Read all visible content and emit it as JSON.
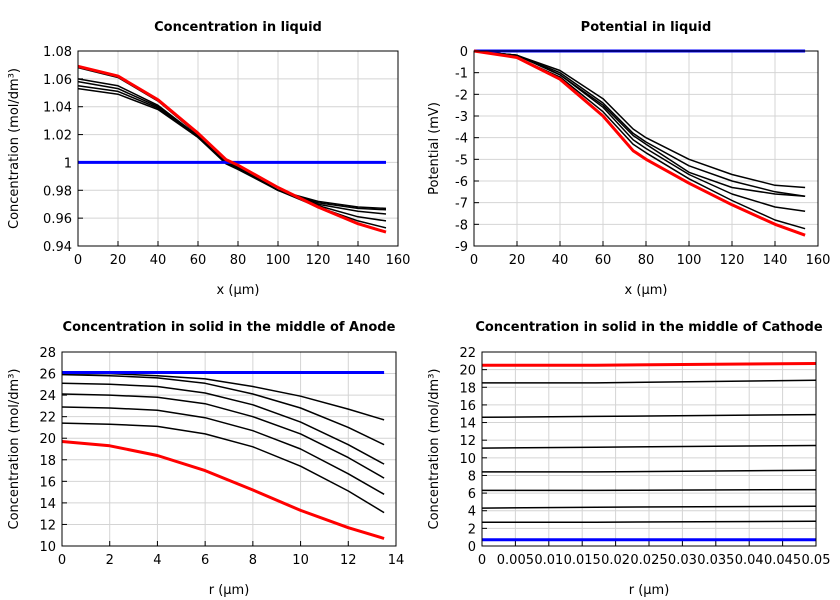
{
  "chart_data": [
    {
      "type": "line",
      "title": "Concentration in liquid",
      "xlabel": "x (µm)",
      "ylabel": "Concentration (mol/dm³)",
      "xlim": [
        0,
        160
      ],
      "ylim": [
        0.94,
        1.08
      ],
      "grid": true,
      "xticks": [
        "0",
        "20",
        "40",
        "60",
        "80",
        "100",
        "120",
        "140",
        "160"
      ],
      "yticks": [
        "0.94",
        "0.96",
        "0.98",
        "1",
        "1.02",
        "1.04",
        "1.06",
        "1.08"
      ],
      "x": [
        0,
        20,
        40,
        60,
        74,
        80,
        100,
        120,
        140,
        154
      ],
      "series": [
        {
          "color": "#000000",
          "values": [
            1.068,
            1.061,
            1.044,
            1.02,
            1.001,
            0.997,
            0.98,
            0.972,
            0.968,
            0.967
          ]
        },
        {
          "color": "#000000",
          "values": [
            1.06,
            1.055,
            1.041,
            1.019,
            1.0,
            0.996,
            0.98,
            0.971,
            0.967,
            0.966
          ]
        },
        {
          "color": "#000000",
          "values": [
            1.058,
            1.053,
            1.04,
            1.019,
            1.0,
            0.996,
            0.98,
            0.97,
            0.965,
            0.963
          ]
        },
        {
          "color": "#000000",
          "values": [
            1.055,
            1.051,
            1.039,
            1.018,
            1.0,
            0.996,
            0.98,
            0.969,
            0.961,
            0.958
          ]
        },
        {
          "color": "#000000",
          "values": [
            1.053,
            1.049,
            1.038,
            1.018,
            0.999,
            0.995,
            0.98,
            0.968,
            0.958,
            0.953
          ]
        },
        {
          "color": "#0000ff",
          "values": [
            1,
            1,
            1,
            1,
            1,
            1,
            1,
            1,
            1,
            1
          ]
        },
        {
          "color": "#ff0000",
          "values": [
            1.069,
            1.062,
            1.045,
            1.021,
            1.002,
            0.998,
            0.982,
            0.968,
            0.956,
            0.95
          ]
        }
      ]
    },
    {
      "type": "line",
      "title": "Potential in liquid",
      "xlabel": "x (µm)",
      "ylabel": "Potential (mV)",
      "xlim": [
        0,
        160
      ],
      "ylim": [
        -9,
        0
      ],
      "grid": true,
      "xticks": [
        "0",
        "20",
        "40",
        "60",
        "80",
        "100",
        "120",
        "140",
        "160"
      ],
      "yticks": [
        "-9",
        "-8",
        "-7",
        "-6",
        "-5",
        "-4",
        "-3",
        "-2",
        "-1",
        "0"
      ],
      "x": [
        0,
        20,
        40,
        60,
        74,
        80,
        100,
        120,
        140,
        154
      ],
      "series": [
        {
          "color": "#000000",
          "values": [
            0,
            -0.2,
            -0.9,
            -2.2,
            -3.6,
            -4.0,
            -5.0,
            -5.7,
            -6.2,
            -6.3
          ]
        },
        {
          "color": "#000000",
          "values": [
            0,
            -0.2,
            -1.0,
            -2.4,
            -3.8,
            -4.2,
            -5.3,
            -6.0,
            -6.5,
            -6.7
          ]
        },
        {
          "color": "#000000",
          "values": [
            0,
            -0.2,
            -1.1,
            -2.5,
            -3.9,
            -4.3,
            -5.6,
            -6.3,
            -6.6,
            -6.7
          ]
        },
        {
          "color": "#000000",
          "values": [
            0,
            -0.2,
            -1.1,
            -2.6,
            -4.1,
            -4.5,
            -5.7,
            -6.6,
            -7.2,
            -7.4
          ]
        },
        {
          "color": "#000000",
          "values": [
            0,
            -0.3,
            -1.2,
            -2.8,
            -4.3,
            -4.7,
            -5.9,
            -6.9,
            -7.8,
            -8.2
          ]
        },
        {
          "color": "#0000ff",
          "values": [
            0,
            0,
            0,
            0,
            0,
            0,
            0,
            0,
            0,
            0
          ]
        },
        {
          "color": "#ff0000",
          "values": [
            0,
            -0.3,
            -1.3,
            -3.0,
            -4.6,
            -5.0,
            -6.1,
            -7.1,
            -8.0,
            -8.5
          ]
        }
      ]
    },
    {
      "type": "line",
      "title": "Concentration in solid in the middle of Anode",
      "xlabel": "r (µm)",
      "ylabel": "Concentration (mol/dm³)",
      "xlim": [
        0,
        14
      ],
      "ylim": [
        10,
        28
      ],
      "grid": true,
      "xticks": [
        "0",
        "2",
        "4",
        "6",
        "8",
        "10",
        "12",
        "14"
      ],
      "yticks": [
        "10",
        "12",
        "14",
        "16",
        "18",
        "20",
        "22",
        "24",
        "26",
        "28"
      ],
      "x": [
        0,
        2,
        4,
        6,
        8,
        10,
        12,
        13.5
      ],
      "series": [
        {
          "color": "#000000",
          "values": [
            26.0,
            26.0,
            25.8,
            25.5,
            24.8,
            23.9,
            22.7,
            21.7
          ]
        },
        {
          "color": "#000000",
          "values": [
            25.9,
            25.8,
            25.6,
            25.1,
            24.1,
            22.8,
            21.0,
            19.4
          ]
        },
        {
          "color": "#000000",
          "values": [
            25.1,
            25.0,
            24.8,
            24.2,
            23.1,
            21.5,
            19.4,
            17.6
          ]
        },
        {
          "color": "#000000",
          "values": [
            24.1,
            24.0,
            23.8,
            23.2,
            22.0,
            20.4,
            18.2,
            16.3
          ]
        },
        {
          "color": "#000000",
          "values": [
            22.9,
            22.8,
            22.6,
            21.9,
            20.7,
            19.0,
            16.7,
            14.8
          ]
        },
        {
          "color": "#000000",
          "values": [
            21.4,
            21.3,
            21.1,
            20.4,
            19.2,
            17.4,
            15.1,
            13.1
          ]
        },
        {
          "color": "#0000ff",
          "values": [
            26.1,
            26.1,
            26.1,
            26.1,
            26.1,
            26.1,
            26.1,
            26.1
          ]
        },
        {
          "color": "#ff0000",
          "values": [
            19.7,
            19.3,
            18.4,
            17.0,
            15.2,
            13.3,
            11.7,
            10.7
          ]
        }
      ]
    },
    {
      "type": "line",
      "title": "Concentration in solid in the middle of Cathode",
      "xlabel": "r (µm)",
      "ylabel": "Concentration (mol/dm³)",
      "xlim": [
        0,
        0.05
      ],
      "ylim": [
        0,
        22
      ],
      "grid": true,
      "xticks": [
        "0",
        "0.005",
        "0.01",
        "0.015",
        "0.02",
        "0.025",
        "0.03",
        "0.035",
        "0.04",
        "0.045",
        "0.05"
      ],
      "yticks": [
        "0",
        "2",
        "4",
        "6",
        "8",
        "10",
        "12",
        "14",
        "16",
        "18",
        "20",
        "22"
      ],
      "x": [
        0,
        0.017,
        0.05
      ],
      "series": [
        {
          "color": "#000000",
          "values": [
            18.5,
            18.5,
            18.8
          ]
        },
        {
          "color": "#000000",
          "values": [
            14.6,
            14.7,
            14.9
          ]
        },
        {
          "color": "#000000",
          "values": [
            11.1,
            11.2,
            11.4
          ]
        },
        {
          "color": "#000000",
          "values": [
            8.4,
            8.4,
            8.6
          ]
        },
        {
          "color": "#000000",
          "values": [
            6.3,
            6.3,
            6.4
          ]
        },
        {
          "color": "#000000",
          "values": [
            4.3,
            4.4,
            4.5
          ]
        },
        {
          "color": "#000000",
          "values": [
            2.7,
            2.7,
            2.8
          ]
        },
        {
          "color": "#0000ff",
          "values": [
            0.7,
            0.7,
            0.7
          ]
        },
        {
          "color": "#ff0000",
          "values": [
            20.5,
            20.5,
            20.7
          ]
        }
      ]
    }
  ]
}
